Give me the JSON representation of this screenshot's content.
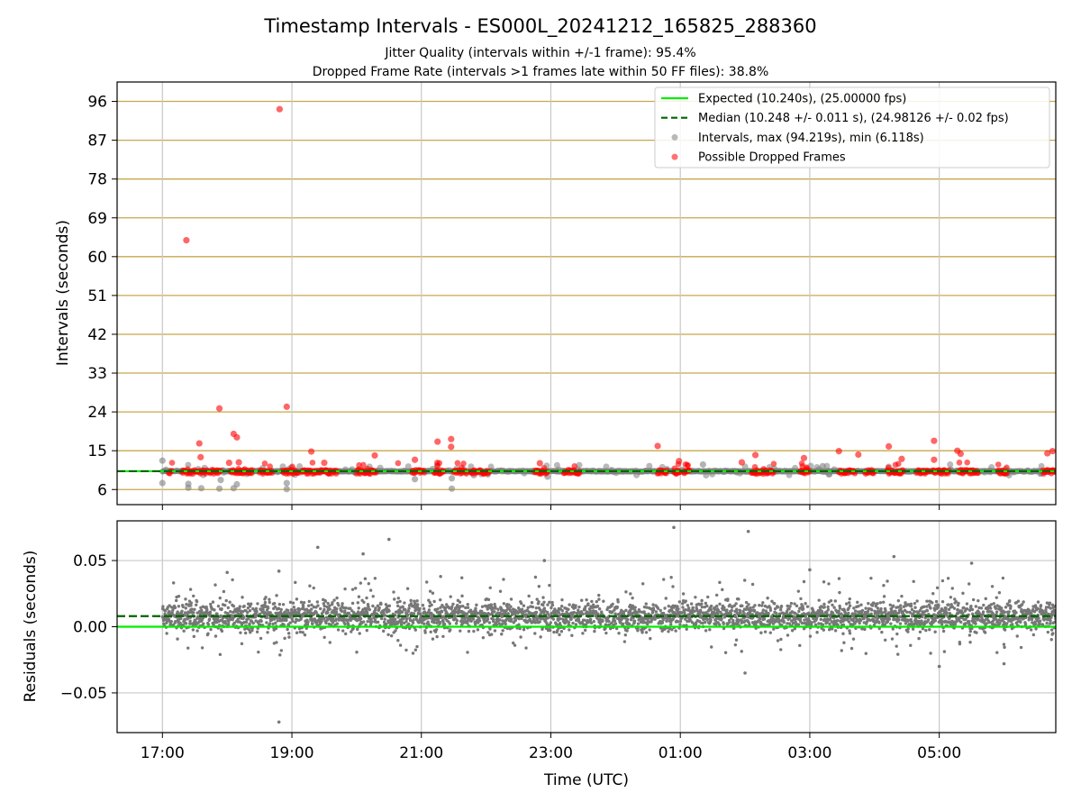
{
  "chart_data": [
    {
      "panel": "intervals",
      "type": "scatter",
      "title": "Timestamp Intervals - ES000L_20241212_165825_288360",
      "subtitle_lines": [
        "Jitter Quality (intervals within +/-1 frame): 95.4%",
        "Dropped Frame Rate (intervals >1 frames late within 50 FF files): 38.8%"
      ],
      "ylabel": "Intervals (seconds)",
      "ylim": [
        2.5,
        100.5
      ],
      "yticks": [
        6,
        15,
        24,
        33,
        42,
        51,
        60,
        69,
        78,
        87,
        96
      ],
      "grid": "horizontal",
      "grid_color": "#c8a84b",
      "legend_position": "top-right",
      "legend": [
        {
          "label": "Expected (10.240s), (25.00000 fps)",
          "style": "solid-line",
          "color": "#00ee00"
        },
        {
          "label": "Median (10.248 +/- 0.011 s), (24.98126 +/- 0.02 fps)",
          "style": "dashed-line",
          "color": "#006400"
        },
        {
          "label": "Intervals, max (94.219s), min (6.118s)",
          "style": "marker",
          "color": "#808080"
        },
        {
          "label": "Possible Dropped Frames",
          "style": "marker",
          "color": "#ff0000"
        }
      ],
      "expected_interval": 10.24,
      "median_interval": 10.248,
      "x_start_hours": 16.3,
      "x_end_hours": 30.8,
      "notable_dropped_points": [
        {
          "t_hours": 18.81,
          "y": 94.2
        },
        {
          "t_hours": 17.37,
          "y": 63.8
        },
        {
          "t_hours": 17.88,
          "y": 24.8
        },
        {
          "t_hours": 18.92,
          "y": 25.2
        },
        {
          "t_hours": 18.1,
          "y": 18.9
        },
        {
          "t_hours": 18.15,
          "y": 18.1
        },
        {
          "t_hours": 17.57,
          "y": 16.7
        },
        {
          "t_hours": 21.25,
          "y": 17.1
        },
        {
          "t_hours": 21.46,
          "y": 17.7
        },
        {
          "t_hours": 21.46,
          "y": 15.9
        },
        {
          "t_hours": 24.65,
          "y": 16.1
        },
        {
          "t_hours": 28.22,
          "y": 16.0
        },
        {
          "t_hours": 28.92,
          "y": 17.3
        },
        {
          "t_hours": 30.75,
          "y": 14.9
        },
        {
          "t_hours": 30.67,
          "y": 14.4
        },
        {
          "t_hours": 19.3,
          "y": 14.8
        },
        {
          "t_hours": 20.28,
          "y": 13.9
        },
        {
          "t_hours": 26.16,
          "y": 14.0
        },
        {
          "t_hours": 27.45,
          "y": 14.9
        },
        {
          "t_hours": 27.75,
          "y": 14.1
        },
        {
          "t_hours": 29.28,
          "y": 15.0
        },
        {
          "t_hours": 29.33,
          "y": 14.3
        },
        {
          "t_hours": 28.92,
          "y": 12.9
        },
        {
          "t_hours": 17.59,
          "y": 13.5
        },
        {
          "t_hours": 20.9,
          "y": 12.9
        },
        {
          "t_hours": 26.91,
          "y": 13.3
        },
        {
          "t_hours": 28.42,
          "y": 13.1
        },
        {
          "t_hours": 24.98,
          "y": 12.6
        },
        {
          "t_hours": 19.5,
          "y": 12.2
        },
        {
          "t_hours": 22.83,
          "y": 12.1
        },
        {
          "t_hours": 25.95,
          "y": 12.3
        },
        {
          "t_hours": 18.03,
          "y": 12.2
        },
        {
          "t_hours": 18.18,
          "y": 12.3
        }
      ],
      "notable_interval_points": [
        {
          "t_hours": 17.0,
          "y": 12.7
        },
        {
          "t_hours": 17.0,
          "y": 7.5
        },
        {
          "t_hours": 17.4,
          "y": 6.4
        },
        {
          "t_hours": 17.4,
          "y": 7.3
        },
        {
          "t_hours": 17.6,
          "y": 6.3
        },
        {
          "t_hours": 17.88,
          "y": 6.2
        },
        {
          "t_hours": 17.9,
          "y": 8.2
        },
        {
          "t_hours": 18.1,
          "y": 6.3
        },
        {
          "t_hours": 18.15,
          "y": 7.2
        },
        {
          "t_hours": 18.92,
          "y": 6.1
        },
        {
          "t_hours": 18.92,
          "y": 7.5
        },
        {
          "t_hours": 20.9,
          "y": 8.4
        },
        {
          "t_hours": 21.47,
          "y": 6.2
        },
        {
          "t_hours": 21.47,
          "y": 8.6
        },
        {
          "t_hours": 22.95,
          "y": 9.0
        },
        {
          "t_hours": 25.35,
          "y": 11.8
        },
        {
          "t_hours": 27.2,
          "y": 11.4
        }
      ]
    },
    {
      "panel": "residuals",
      "type": "scatter",
      "xlabel": "Time (UTC)",
      "ylabel": "Residuals (seconds)",
      "ylim": [
        -0.08,
        0.08
      ],
      "yticks": [
        -0.05,
        0.0,
        0.05
      ],
      "ytick_labels": [
        "−0.05",
        "0.00",
        "0.05"
      ],
      "xticks_hours": [
        17,
        19,
        21,
        23,
        25,
        27,
        29
      ],
      "xtick_labels": [
        "17:00",
        "19:00",
        "21:00",
        "23:00",
        "01:00",
        "03:00",
        "05:00"
      ],
      "grid": "both",
      "expected_residual": 0.0,
      "median_residual": 0.008,
      "typical_range": [
        -0.02,
        0.03
      ],
      "notable_points": [
        {
          "t_hours": 18.8,
          "y": -0.072
        },
        {
          "t_hours": 19.4,
          "y": 0.06
        },
        {
          "t_hours": 20.1,
          "y": 0.055
        },
        {
          "t_hours": 20.5,
          "y": 0.066
        },
        {
          "t_hours": 22.9,
          "y": 0.05
        },
        {
          "t_hours": 24.9,
          "y": 0.075
        },
        {
          "t_hours": 26.05,
          "y": 0.072
        },
        {
          "t_hours": 28.3,
          "y": 0.053
        },
        {
          "t_hours": 18.0,
          "y": 0.041
        },
        {
          "t_hours": 18.8,
          "y": 0.042
        },
        {
          "t_hours": 29.5,
          "y": 0.048
        },
        {
          "t_hours": 27.0,
          "y": 0.043
        },
        {
          "t_hours": 29.0,
          "y": -0.03
        },
        {
          "t_hours": 26.0,
          "y": -0.035
        },
        {
          "t_hours": 30.0,
          "y": -0.028
        }
      ]
    }
  ]
}
